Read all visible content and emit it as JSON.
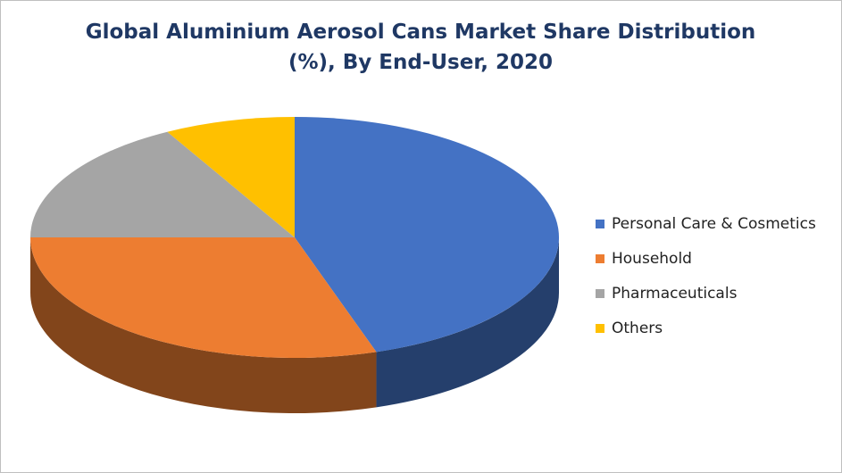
{
  "chart_data": {
    "type": "pie3d",
    "title": "Global Aluminium Aerosol Cans Market Share Distribution (%), By End-User, 2020",
    "series": [
      {
        "name": "Personal Care & Cosmetics",
        "color": "#4472c4",
        "values": [
          45
        ]
      },
      {
        "name": "Household",
        "color": "#ed7d31",
        "values": [
          30
        ]
      },
      {
        "name": "Pharmaceuticals",
        "color": "#a5a5a5",
        "values": [
          17
        ]
      },
      {
        "name": "Others",
        "color": "#ffc000",
        "values": [
          8
        ]
      }
    ],
    "legend": "right"
  }
}
